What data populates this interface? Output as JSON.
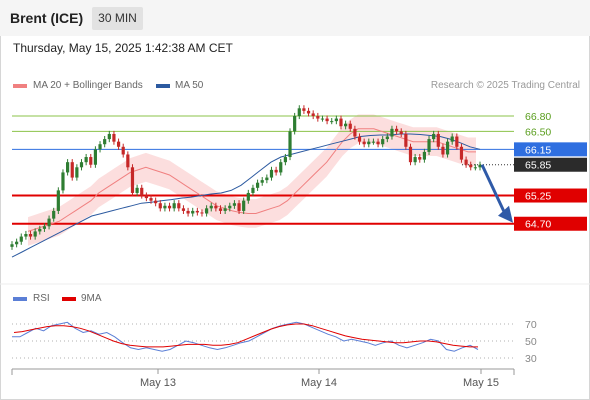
{
  "header": {
    "symbol": "Brent (ICE)",
    "timeframe": "30 MIN"
  },
  "timestamp": "Thursday, May 15, 2025 1:42:38 AM CET",
  "legend": {
    "bb": {
      "label": "MA 20 + Bollinger Bands",
      "color": "#f08080"
    },
    "ma50": {
      "label": "MA 50",
      "color": "#2c5aa0"
    },
    "rsi": {
      "label": "RSI",
      "color": "#5b7fd6"
    },
    "rsi_ma": {
      "label": "9MA",
      "color": "#e00000"
    }
  },
  "credit": "Research © 2025 Trading Central",
  "colors": {
    "up": "#2e7d32",
    "down": "#c62828",
    "support": "#e00000",
    "resistance": "#8bc34a",
    "pivot": "#2f6fe0"
  },
  "chart_data": [
    {
      "type": "line",
      "title": "Brent (ICE) 30 MIN",
      "x_ticks": [
        "May 13",
        "May 14",
        "May 15"
      ],
      "ylim": [
        64.2,
        67.05
      ],
      "levels": [
        {
          "value": 66.8,
          "label": "66.80",
          "kind": "resistance"
        },
        {
          "value": 66.5,
          "label": "66.50",
          "kind": "resistance"
        },
        {
          "value": 66.15,
          "label": "66.15",
          "kind": "pivot"
        },
        {
          "value": 64.7,
          "label": "64.70",
          "kind": "support"
        },
        {
          "value": 65.25,
          "label": "65.25",
          "kind": "support"
        }
      ],
      "last_price": {
        "value": 65.85,
        "label": "65.85"
      },
      "forecast_arrow": {
        "from": 65.85,
        "to": 64.7
      },
      "series": [
        {
          "name": "Brent",
          "values": [
            64.3,
            64.35,
            64.45,
            64.5,
            64.45,
            64.55,
            64.6,
            64.65,
            64.8,
            64.95,
            65.35,
            65.7,
            65.9,
            65.6,
            65.8,
            65.9,
            66.0,
            65.85,
            66.15,
            66.25,
            66.35,
            66.45,
            66.3,
            66.2,
            66.05,
            65.8,
            65.3,
            65.4,
            65.25,
            65.2,
            65.15,
            65.1,
            65.0,
            65.05,
            65.0,
            65.1,
            65.0,
            64.95,
            64.9,
            64.95,
            64.92,
            64.9,
            65.0,
            65.05,
            65.0,
            64.95,
            65.0,
            65.05,
            65.1,
            64.95,
            65.15,
            65.3,
            65.4,
            65.5,
            65.55,
            65.6,
            65.75,
            65.7,
            65.9,
            66.0,
            66.5,
            66.8,
            66.95,
            66.9,
            66.85,
            66.8,
            66.75,
            66.75,
            66.7,
            66.7,
            66.75,
            66.6,
            66.65,
            66.55,
            66.4,
            66.3,
            66.25,
            66.3,
            66.3,
            66.25,
            66.35,
            66.4,
            66.55,
            66.5,
            66.45,
            66.2,
            65.9,
            66.0,
            65.95,
            66.1,
            66.35,
            66.45,
            66.2,
            66.05,
            66.3,
            66.4,
            66.2,
            65.95,
            65.85,
            65.8,
            65.8,
            65.85
          ]
        },
        {
          "name": "MA 20",
          "values": [
            64.55,
            64.6,
            64.65,
            64.7,
            64.75,
            64.85,
            64.95,
            65.05,
            65.15,
            65.3,
            65.4,
            65.5,
            65.6,
            65.7,
            65.75,
            65.8,
            65.75,
            65.7,
            65.65,
            65.55,
            65.45,
            65.35,
            65.25,
            65.15,
            65.05,
            65.0,
            64.95,
            64.92,
            64.9,
            64.9,
            64.95,
            65.0,
            65.05,
            65.15,
            65.3,
            65.45,
            65.6,
            65.75,
            65.9,
            66.1,
            66.3,
            66.45,
            66.55,
            66.55,
            66.55,
            66.5,
            66.45,
            66.4,
            66.35,
            66.3,
            66.3,
            66.3,
            66.3,
            66.25,
            66.2,
            66.15,
            66.1,
            66.1
          ]
        },
        {
          "name": "MA 50",
          "values": [
            64.05,
            64.15,
            64.25,
            64.35,
            64.45,
            64.55,
            64.65,
            64.75,
            64.85,
            64.9,
            64.95,
            65.0,
            65.05,
            65.1,
            65.12,
            65.15,
            65.17,
            65.2,
            65.22,
            65.25,
            65.28,
            65.3,
            65.35,
            65.45,
            65.6,
            65.75,
            65.9,
            66.0,
            66.05,
            66.1,
            66.15,
            66.2,
            66.25,
            66.3,
            66.35,
            66.4,
            66.42,
            66.43,
            66.43,
            66.45,
            66.45,
            66.44,
            66.42,
            66.4,
            66.35,
            66.28,
            66.2,
            66.15
          ]
        }
      ]
    },
    {
      "type": "line",
      "title": "RSI",
      "y_ticks": [
        30,
        50,
        70
      ],
      "ylim": [
        20,
        80
      ],
      "series": [
        {
          "name": "RSI",
          "values": [
            55,
            55,
            60,
            65,
            62,
            68,
            70,
            72,
            65,
            60,
            62,
            58,
            60,
            55,
            48,
            42,
            40,
            42,
            40,
            38,
            40,
            45,
            50,
            48,
            45,
            42,
            40,
            42,
            45,
            48,
            50,
            55,
            60,
            65,
            68,
            70,
            72,
            70,
            66,
            62,
            58,
            55,
            50,
            52,
            50,
            48,
            45,
            48,
            50,
            45,
            42,
            45,
            48,
            52,
            50,
            40,
            38,
            42,
            45,
            40
          ]
        },
        {
          "name": "9MA",
          "values": [
            60,
            61,
            63,
            65,
            67,
            68,
            68,
            67,
            65,
            62,
            58,
            54,
            50,
            47,
            45,
            44,
            43,
            43,
            43,
            44,
            45,
            46,
            46,
            46,
            45,
            45,
            46,
            48,
            52,
            56,
            60,
            64,
            67,
            69,
            70,
            70,
            68,
            65,
            62,
            59,
            56,
            54,
            52,
            51,
            50,
            49,
            48,
            48,
            49,
            50,
            50,
            49,
            47,
            45,
            44,
            43,
            43
          ]
        }
      ]
    }
  ]
}
